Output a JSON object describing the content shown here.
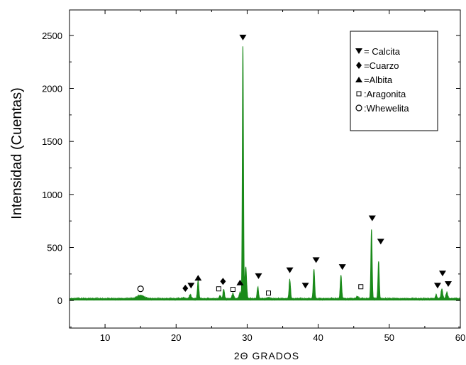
{
  "chart_data": {
    "type": "line",
    "title": "",
    "xlabel": "2Θ GRADOS",
    "ylabel": "Intensidad (Cuentas)",
    "xlim": [
      5,
      60
    ],
    "ylim": [
      -260,
      2740
    ],
    "xticks": [
      10,
      20,
      30,
      40,
      50,
      60
    ],
    "yticks": [
      0,
      500,
      1000,
      1500,
      2000,
      2500
    ],
    "grid": false,
    "legend_position": "top-right",
    "color": "#1a8a1a",
    "baseline": 15,
    "peaks": [
      {
        "x": 15.0,
        "y": 30,
        "w": 0.5
      },
      {
        "x": 21.0,
        "y": 10,
        "w": 0.15
      },
      {
        "x": 22.0,
        "y": 40,
        "w": 0.12
      },
      {
        "x": 23.1,
        "y": 170,
        "w": 0.1
      },
      {
        "x": 26.2,
        "y": 25,
        "w": 0.12
      },
      {
        "x": 26.7,
        "y": 90,
        "w": 0.1
      },
      {
        "x": 28.0,
        "y": 50,
        "w": 0.12
      },
      {
        "x": 29.0,
        "y": 60,
        "w": 0.12
      },
      {
        "x": 29.4,
        "y": 2380,
        "w": 0.08
      },
      {
        "x": 29.8,
        "y": 300,
        "w": 0.12
      },
      {
        "x": 31.5,
        "y": 110,
        "w": 0.1
      },
      {
        "x": 33.0,
        "y": 10,
        "w": 0.15
      },
      {
        "x": 36.0,
        "y": 180,
        "w": 0.1
      },
      {
        "x": 39.4,
        "y": 280,
        "w": 0.1
      },
      {
        "x": 43.2,
        "y": 220,
        "w": 0.1
      },
      {
        "x": 45.5,
        "y": 20,
        "w": 0.15
      },
      {
        "x": 47.5,
        "y": 650,
        "w": 0.09
      },
      {
        "x": 48.5,
        "y": 350,
        "w": 0.09
      },
      {
        "x": 56.6,
        "y": 40,
        "w": 0.1
      },
      {
        "x": 57.4,
        "y": 90,
        "w": 0.12
      },
      {
        "x": 58.1,
        "y": 60,
        "w": 0.12
      }
    ],
    "markers": [
      {
        "symbol": "ring",
        "x": 15.0,
        "y": 110
      },
      {
        "symbol": "diamond",
        "x": 21.3,
        "y": 115
      },
      {
        "symbol": "down-triangle",
        "x": 22.1,
        "y": 140
      },
      {
        "symbol": "up-triangle",
        "x": 23.1,
        "y": 215
      },
      {
        "symbol": "square",
        "x": 26.0,
        "y": 110
      },
      {
        "symbol": "diamond",
        "x": 26.6,
        "y": 180
      },
      {
        "symbol": "square",
        "x": 28.0,
        "y": 105
      },
      {
        "symbol": "up-triangle",
        "x": 29.0,
        "y": 170
      },
      {
        "symbol": "down-triangle",
        "x": 29.4,
        "y": 2480
      },
      {
        "symbol": "down-triangle",
        "x": 31.6,
        "y": 230
      },
      {
        "symbol": "square",
        "x": 33.0,
        "y": 70
      },
      {
        "symbol": "down-triangle",
        "x": 36.0,
        "y": 285
      },
      {
        "symbol": "down-triangle",
        "x": 38.2,
        "y": 140
      },
      {
        "symbol": "down-triangle",
        "x": 39.7,
        "y": 380
      },
      {
        "symbol": "down-triangle",
        "x": 43.4,
        "y": 315
      },
      {
        "symbol": "square",
        "x": 46.0,
        "y": 130
      },
      {
        "symbol": "down-triangle",
        "x": 47.6,
        "y": 775
      },
      {
        "symbol": "down-triangle",
        "x": 48.8,
        "y": 555
      },
      {
        "symbol": "down-triangle",
        "x": 56.8,
        "y": 140
      },
      {
        "symbol": "down-triangle",
        "x": 57.5,
        "y": 255
      },
      {
        "symbol": "down-triangle",
        "x": 58.3,
        "y": 155
      }
    ],
    "legend": [
      {
        "symbol": "down-triangle",
        "label": "= Calcita"
      },
      {
        "symbol": "diamond",
        "label": "=Cuarzo"
      },
      {
        "symbol": "up-triangle",
        "label": "=Albita"
      },
      {
        "symbol": "square",
        "label": ":Aragonita"
      },
      {
        "symbol": "ring",
        "label": ":Whewelita"
      }
    ]
  }
}
